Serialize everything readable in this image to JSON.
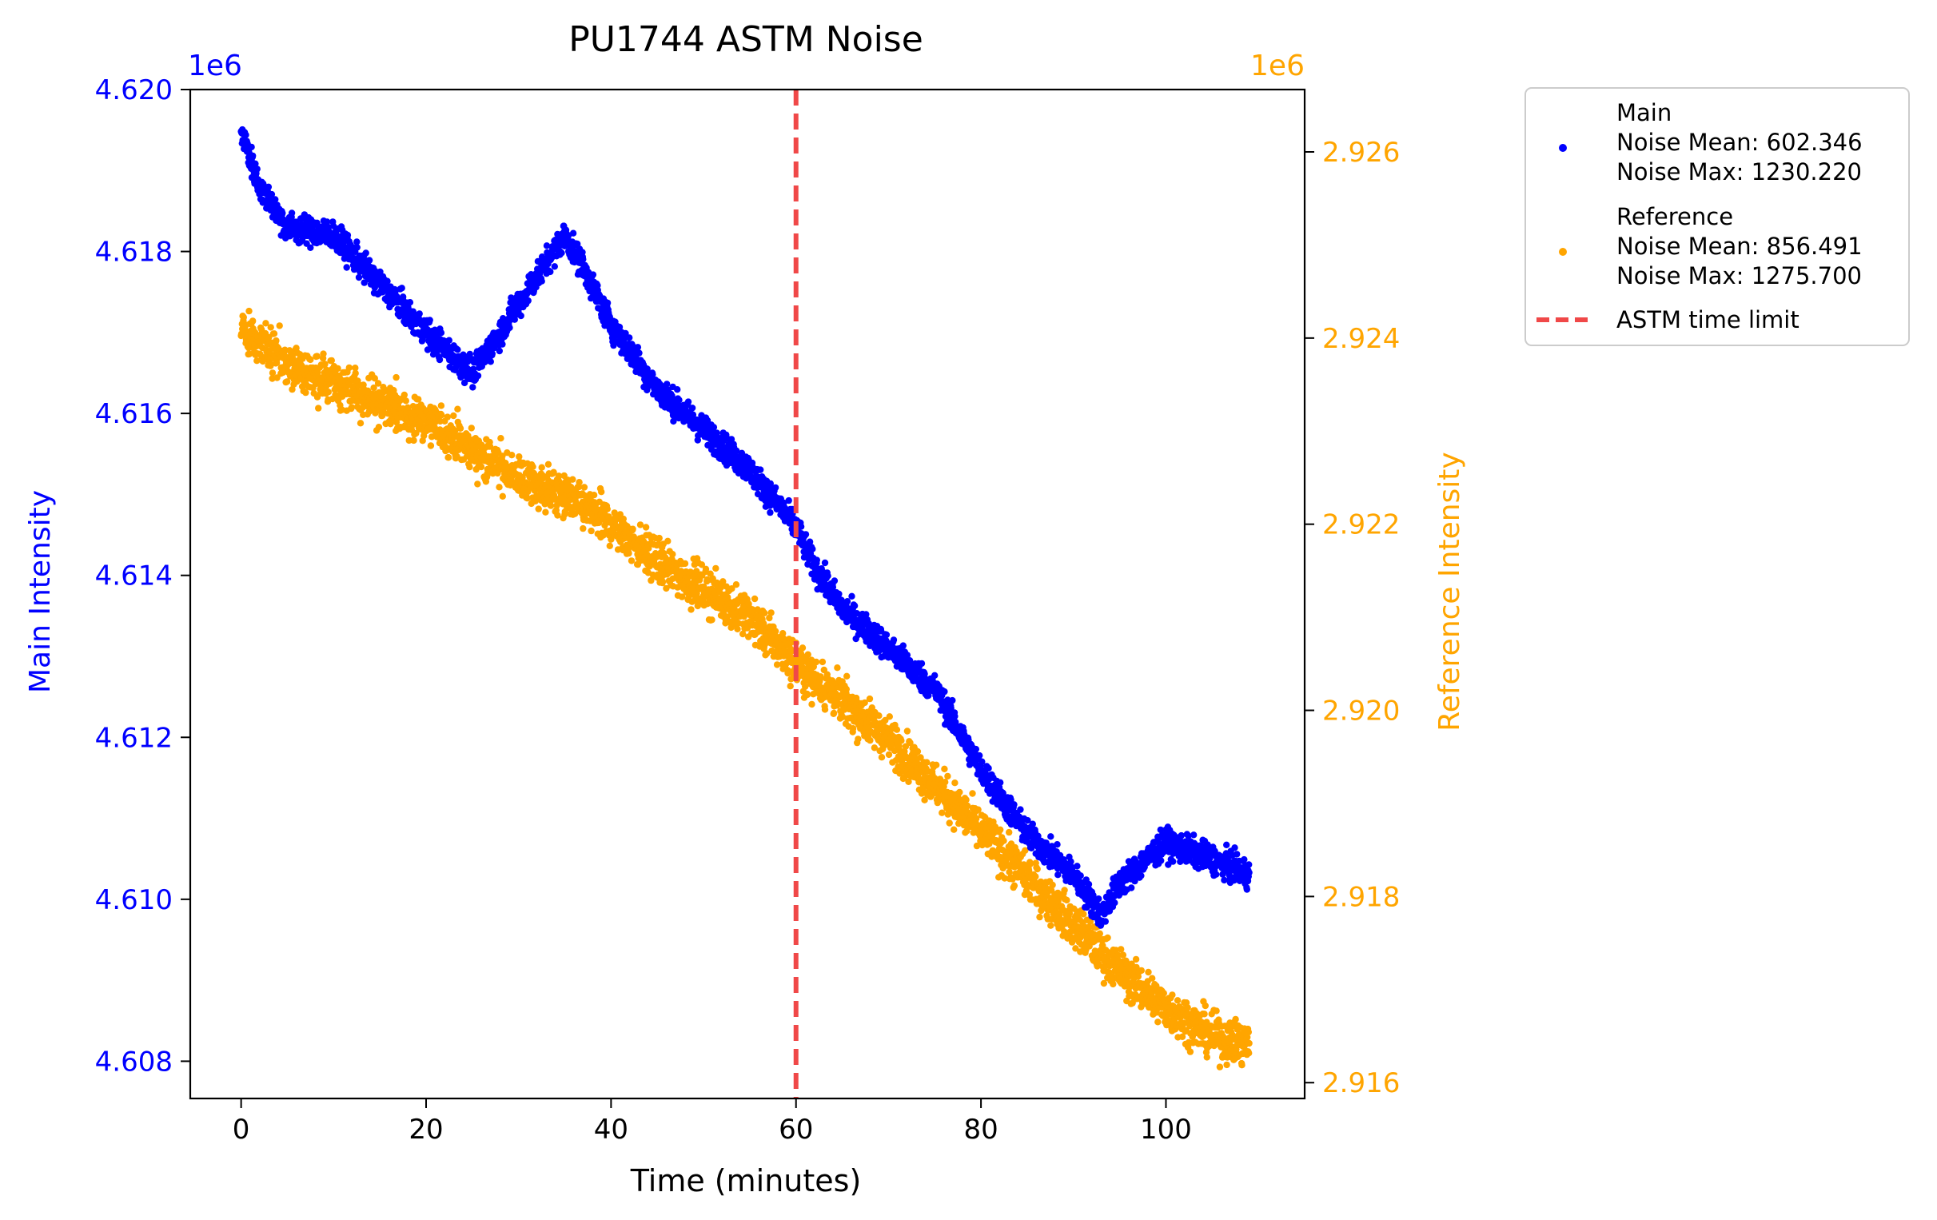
{
  "chart_data": {
    "type": "scatter",
    "title": "PU1744 ASTM Noise",
    "xlabel": "Time (minutes)",
    "ylabel_left": "Main Intensity",
    "ylabel_right": "Reference Intensity",
    "x_ticks": [
      "0",
      "20",
      "40",
      "60",
      "80",
      "100"
    ],
    "x_tick_values": [
      0,
      20,
      40,
      60,
      80,
      100
    ],
    "xlim": [
      -5.5,
      115
    ],
    "left_axis": {
      "offset_label": "1e6",
      "tick_labels": [
        "4.608",
        "4.610",
        "4.612",
        "4.614",
        "4.616",
        "4.618",
        "4.620"
      ],
      "tick_values": [
        4.608,
        4.61,
        4.612,
        4.614,
        4.616,
        4.618,
        4.62
      ],
      "ylim": [
        4.60754,
        4.62
      ],
      "color": "#0000ff"
    },
    "right_axis": {
      "offset_label": "1e6",
      "tick_labels": [
        "2.916",
        "2.918",
        "2.920",
        "2.922",
        "2.924",
        "2.926"
      ],
      "tick_values": [
        2.916,
        2.918,
        2.92,
        2.922,
        2.924,
        2.926
      ],
      "ylim": [
        2.91583,
        2.92667
      ],
      "color": "#ffa500"
    },
    "series": [
      {
        "name": "Main",
        "axis": "left",
        "color": "#0000ff",
        "trend_x": [
          0,
          2,
          5,
          10,
          15,
          20,
          25,
          28,
          32,
          35,
          37,
          40,
          45,
          50,
          55,
          60,
          62,
          65,
          70,
          75,
          80,
          85,
          90,
          93,
          95,
          100,
          105,
          109
        ],
        "trend_y": [
          4.6195,
          4.6188,
          4.6183,
          4.6182,
          4.6176,
          4.617,
          4.6165,
          4.617,
          4.6177,
          4.6182,
          4.6178,
          4.6171,
          4.6163,
          4.6158,
          4.6153,
          4.6146,
          4.6141,
          4.6136,
          4.6131,
          4.6126,
          4.6116,
          4.6108,
          4.6103,
          4.6098,
          4.6102,
          4.6107,
          4.6105,
          4.6103
        ],
        "noise_band": 0.0003,
        "legend_lines": [
          "Main",
          "Noise Mean: 602.346",
          "Noise Max: 1230.220"
        ]
      },
      {
        "name": "Reference",
        "axis": "right",
        "color": "#ffa500",
        "trend_x": [
          0,
          5,
          10,
          15,
          20,
          25,
          30,
          35,
          40,
          45,
          50,
          55,
          60,
          65,
          70,
          75,
          80,
          85,
          90,
          95,
          100,
          105,
          109
        ],
        "trend_y": [
          2.9241,
          2.9237,
          2.9235,
          2.9233,
          2.9231,
          2.9228,
          2.9225,
          2.9223,
          2.922,
          2.9216,
          2.9213,
          2.921,
          2.9205,
          2.9201,
          2.9197,
          2.9192,
          2.9187,
          2.9182,
          2.9177,
          2.9172,
          2.9168,
          2.9165,
          2.9164
        ],
        "noise_band": 0.0004,
        "legend_lines": [
          "Reference",
          "Noise Mean: 856.491",
          "Noise Max: 1275.700"
        ]
      }
    ],
    "vline": {
      "x": 60,
      "label": "ASTM time limit",
      "color": "#f04848",
      "style": "dashed"
    },
    "legend_position": "outside-right",
    "grid": false
  }
}
